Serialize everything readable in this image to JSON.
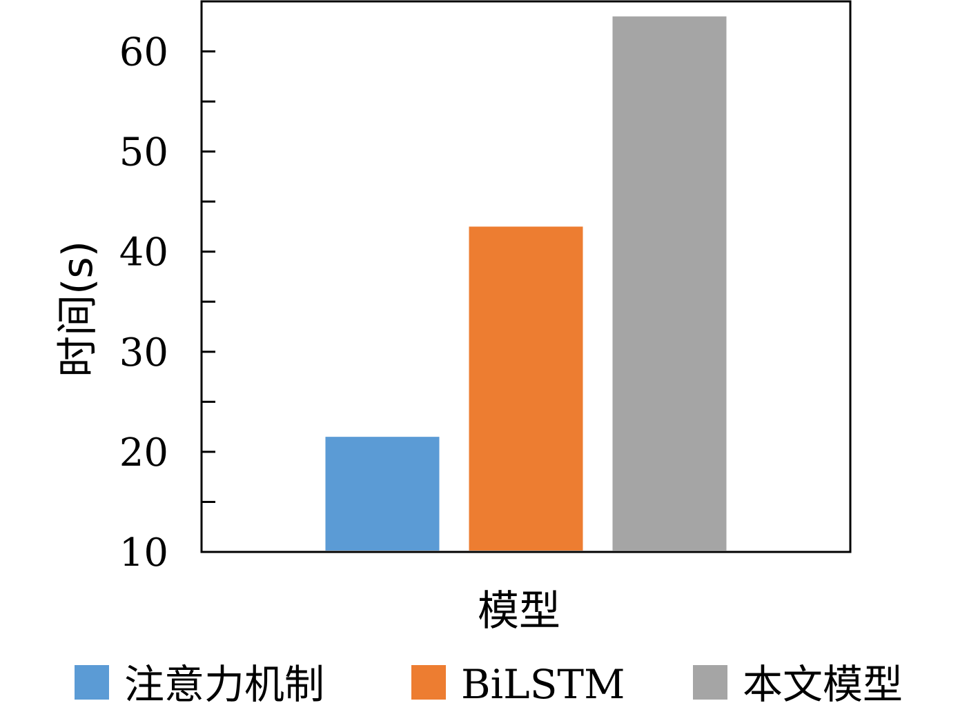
{
  "chart_data": {
    "type": "bar",
    "title": "",
    "xlabel": "模型",
    "ylabel": "时间(s)",
    "ylim": [
      10,
      65
    ],
    "yticks": [
      10,
      20,
      30,
      40,
      50,
      60
    ],
    "grid": false,
    "legend_position": "bottom",
    "series": [
      {
        "name": "注意力机制",
        "value": 21.5,
        "color": "#5b9bd5"
      },
      {
        "name": "BiLSTM",
        "value": 42.5,
        "color": "#ed7d31"
      },
      {
        "name": "本文模型",
        "value": 63.5,
        "color": "#a5a5a5"
      }
    ]
  }
}
